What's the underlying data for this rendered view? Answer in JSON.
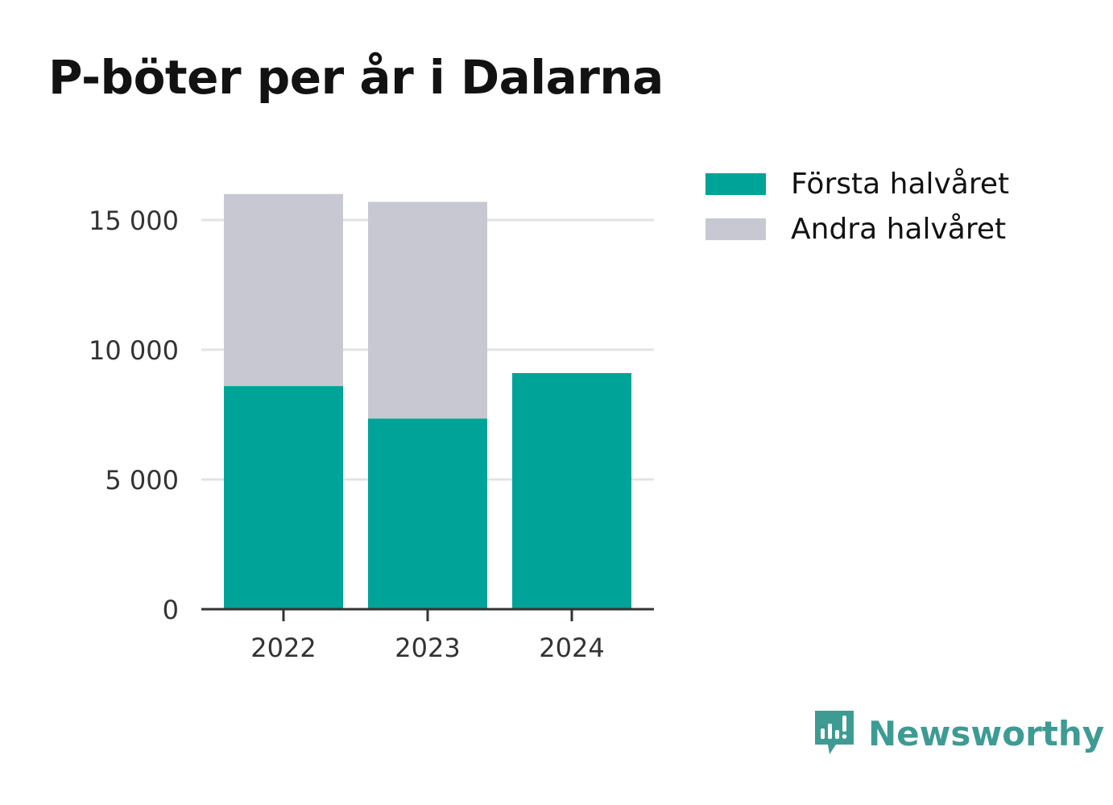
{
  "title": "P-böter per år i Dalarna",
  "legend": {
    "first_label": "Första halvåret",
    "second_label": "Andra halvåret"
  },
  "colors": {
    "first_half": "#00a398",
    "second_half": "#c8c8d2",
    "grid": "#e3e3e3",
    "axis": "#333333",
    "brand": "#3e9b94"
  },
  "brand": {
    "name": "Newsworthy",
    "icon": "newsworthy-logo-icon"
  },
  "chart_data": {
    "type": "bar",
    "stacked": true,
    "categories": [
      "2022",
      "2023",
      "2024"
    ],
    "series": [
      {
        "name": "Första halvåret",
        "values": [
          8600,
          7350,
          9100
        ]
      },
      {
        "name": "Andra halvåret",
        "values": [
          7400,
          8350,
          0
        ]
      }
    ],
    "ylim": [
      0,
      15000
    ],
    "yticks": [
      0,
      5000,
      10000,
      15000
    ],
    "ytick_labels": [
      "0",
      "5 000",
      "10 000",
      "15 000"
    ],
    "grid": true,
    "legend_position": "top-right"
  }
}
